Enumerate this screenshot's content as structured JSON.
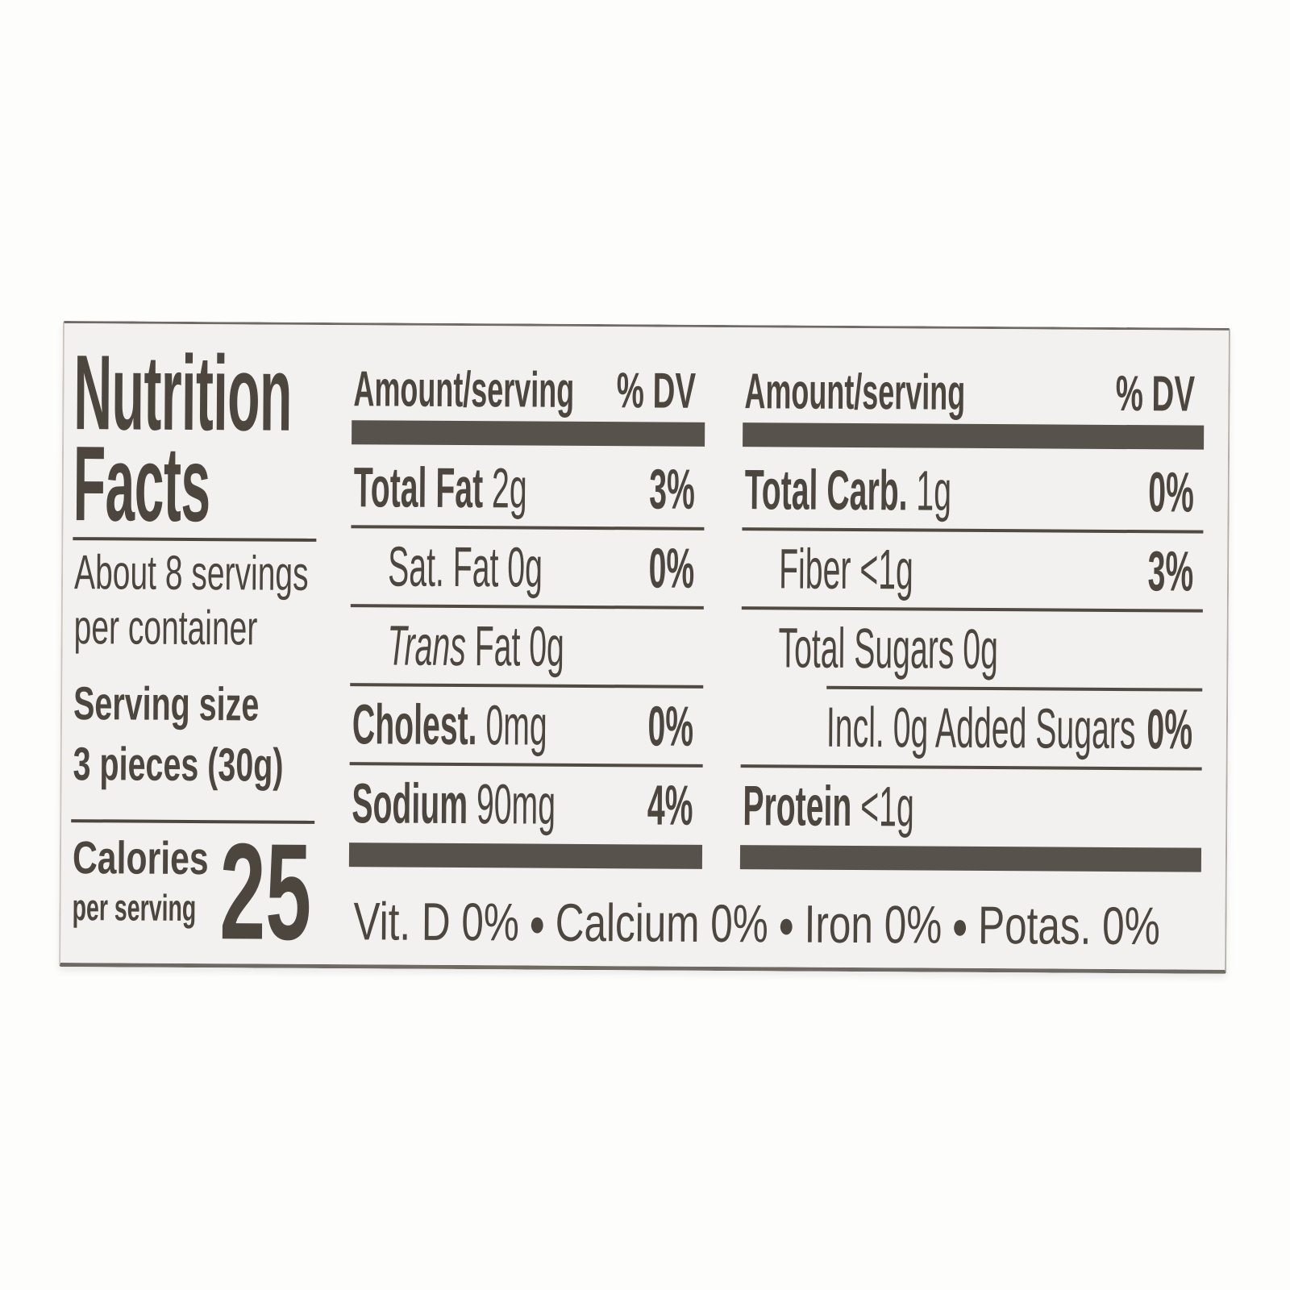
{
  "page": {
    "background": "#fdfdfc"
  },
  "label": {
    "background": "#f2f1ef",
    "ink_color": "#4c463f",
    "bar_color": "#57524b",
    "title_lines": [
      "Nutrition",
      "Facts"
    ],
    "servings_per_container_lines": [
      "About 8 servings",
      "per container"
    ],
    "serving_size": {
      "label": "Serving size",
      "value": "3 pieces (30g)"
    },
    "calories": {
      "label": "Calories",
      "sublabel": "per serving",
      "value": "25"
    },
    "columns": [
      {
        "header": {
          "amount": "Amount/serving",
          "dv": "% DV"
        },
        "rows": [
          {
            "label": "Total Fat",
            "label_bold": true,
            "label_italic": "",
            "amount": "2g",
            "dv": "3%",
            "indent": 0,
            "divider_after": "full"
          },
          {
            "label": "Sat. Fat",
            "label_bold": false,
            "label_italic": "",
            "amount": "0g",
            "dv": "0%",
            "indent": 1,
            "divider_after": "full"
          },
          {
            "label": "Fat",
            "label_bold": false,
            "label_italic": "Trans",
            "amount": "0g",
            "dv": "",
            "indent": 1,
            "divider_after": "full"
          },
          {
            "label": "Cholest.",
            "label_bold": true,
            "label_italic": "",
            "amount": "0mg",
            "dv": "0%",
            "indent": 0,
            "divider_after": "full"
          },
          {
            "label": "Sodium",
            "label_bold": true,
            "label_italic": "",
            "amount": "90mg",
            "dv": "4%",
            "indent": 0,
            "divider_after": "none"
          }
        ]
      },
      {
        "header": {
          "amount": "Amount/serving",
          "dv": "% DV"
        },
        "rows": [
          {
            "label": "Total Carb.",
            "label_bold": true,
            "label_italic": "",
            "amount": "1g",
            "dv": "0%",
            "indent": 0,
            "divider_after": "full"
          },
          {
            "label": "Fiber",
            "label_bold": false,
            "label_italic": "",
            "amount": "<1g",
            "dv": "3%",
            "indent": 1,
            "divider_after": "full"
          },
          {
            "label": "Total Sugars",
            "label_bold": false,
            "label_italic": "",
            "amount": "0g",
            "dv": "",
            "indent": 1,
            "divider_after": "indented"
          },
          {
            "label": "Incl. 0g Added Sugars",
            "label_bold": false,
            "label_italic": "",
            "amount": "",
            "dv": "0%",
            "indent": 2,
            "divider_after": "full"
          },
          {
            "label": "Protein",
            "label_bold": true,
            "label_italic": "",
            "amount": "<1g",
            "dv": "",
            "indent": 0,
            "divider_after": "none"
          }
        ]
      }
    ],
    "micronutrients": [
      {
        "name": "Vit. D",
        "value": "0%"
      },
      {
        "name": "Calcium",
        "value": "0%"
      },
      {
        "name": "Iron",
        "value": "0%"
      },
      {
        "name": "Potas.",
        "value": "0%"
      }
    ],
    "micronutrient_separator": "●"
  }
}
